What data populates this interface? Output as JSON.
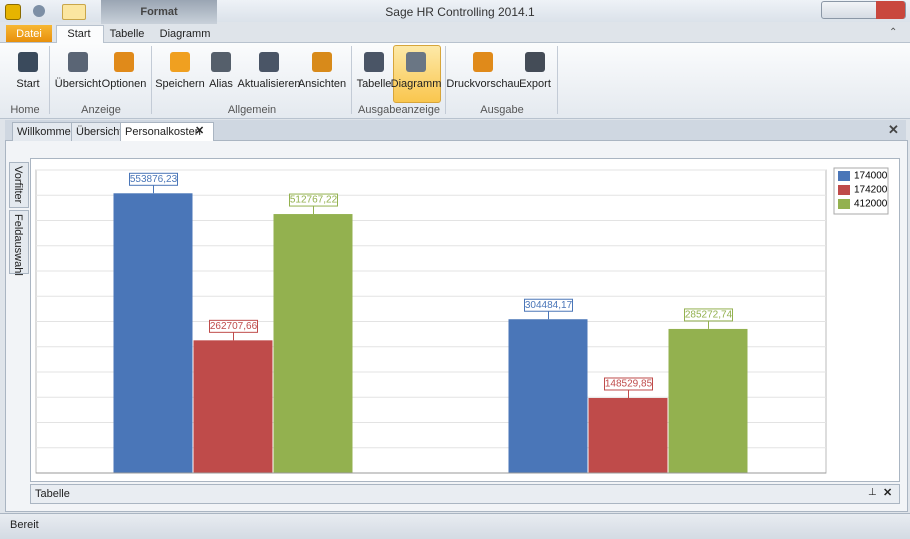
{
  "window": {
    "title": "Sage HR Controlling 2014.1",
    "context_tab": "Format"
  },
  "ribbon": {
    "tabs": [
      "Datei",
      "Start",
      "Tabelle",
      "Diagramm"
    ],
    "groups": [
      {
        "label": "Home",
        "buttons": [
          "Start"
        ]
      },
      {
        "label": "Anzeige",
        "buttons": [
          "Übersicht",
          "Optionen"
        ]
      },
      {
        "label": "Allgemein",
        "buttons": [
          "Speichern",
          "Alias",
          "Aktualisieren",
          "Ansichten"
        ]
      },
      {
        "label": "Ausgabeanzeige",
        "buttons": [
          "Tabelle",
          "Diagramm"
        ]
      },
      {
        "label": "Ausgabe",
        "buttons": [
          "Druckvorschau",
          "Export"
        ]
      }
    ]
  },
  "document_tabs": [
    "Willkommen",
    "Übersicht",
    "Personalkosten"
  ],
  "side_tabs": [
    "Vorfilter",
    "Feldauswahl"
  ],
  "bottom_panel": {
    "title": "Tabelle"
  },
  "status": "Bereit",
  "chart_data": {
    "type": "bar",
    "categories": [
      null,
      null
    ],
    "series": [
      {
        "name": "174000",
        "color": "#4a76b8",
        "values": [
          553876.23,
          304484.17
        ],
        "value_labels": [
          "553876,23",
          "304484,17"
        ]
      },
      {
        "name": "174200",
        "color": "#bf4b4a",
        "values": [
          262707.66,
          148529.85
        ],
        "value_labels": [
          "262707,66",
          "148529,85"
        ]
      },
      {
        "name": "412000",
        "color": "#93b14f",
        "values": [
          512767.22,
          285272.74
        ],
        "value_labels": [
          "512767,22",
          "285272,74"
        ]
      }
    ],
    "ylim": [
      0,
      600000
    ],
    "yticks": [
      0,
      50000,
      100000,
      150000,
      200000,
      250000,
      300000,
      350000,
      400000,
      450000,
      500000,
      550000,
      600000
    ],
    "grid": true,
    "legend": "top-right"
  }
}
